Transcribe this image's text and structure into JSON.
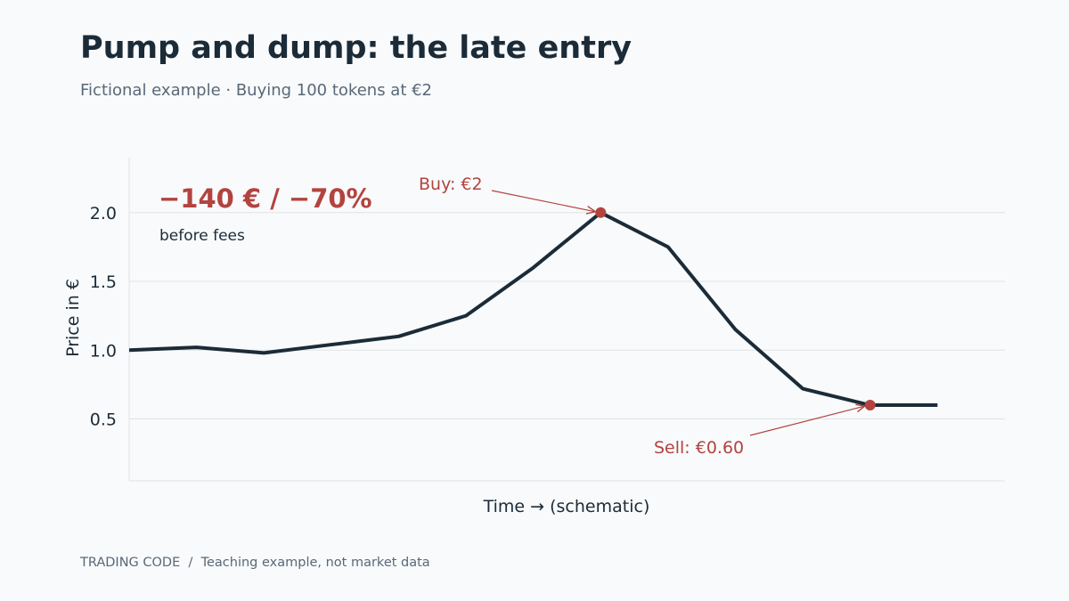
{
  "title": "Pump and dump: the late entry",
  "subtitle": "Fictional example · Buying 100 tokens at €2",
  "footer": "TRADING CODE  /  Teaching example, not market data",
  "colors": {
    "line": "#1b2b38",
    "accent": "#b3433f",
    "grid": "#dfe3e6",
    "background": "#f8fafb"
  },
  "chart_data": {
    "type": "line",
    "title": "Pump and dump: the late entry",
    "subtitle": "Fictional example · Buying 100 tokens at €2",
    "xlabel": "Time → (schematic)",
    "ylabel": "Price in €",
    "x": [
      0,
      1,
      2,
      3,
      4,
      5,
      6,
      7,
      8,
      9,
      10,
      11,
      12
    ],
    "xlim": [
      0,
      13
    ],
    "ylim": [
      0.05,
      2.4
    ],
    "yticks": [
      0.5,
      1.0,
      1.5,
      2.0
    ],
    "ytick_labels": [
      "0.5",
      "1.0",
      "1.5",
      "2.0"
    ],
    "grid": true,
    "series": [
      {
        "values": [
          1.0,
          1.02,
          0.98,
          1.04,
          1.1,
          1.25,
          1.6,
          2.0,
          1.75,
          1.15,
          0.72,
          0.6,
          0.6
        ]
      }
    ],
    "annotations": [
      {
        "label": "Buy: €2",
        "x": 7,
        "y": 2.0
      },
      {
        "label": "Sell: €0.60",
        "x": 11,
        "y": 0.6
      }
    ],
    "callout": {
      "headline": "−140 € / −70%",
      "note": "before fees"
    }
  }
}
